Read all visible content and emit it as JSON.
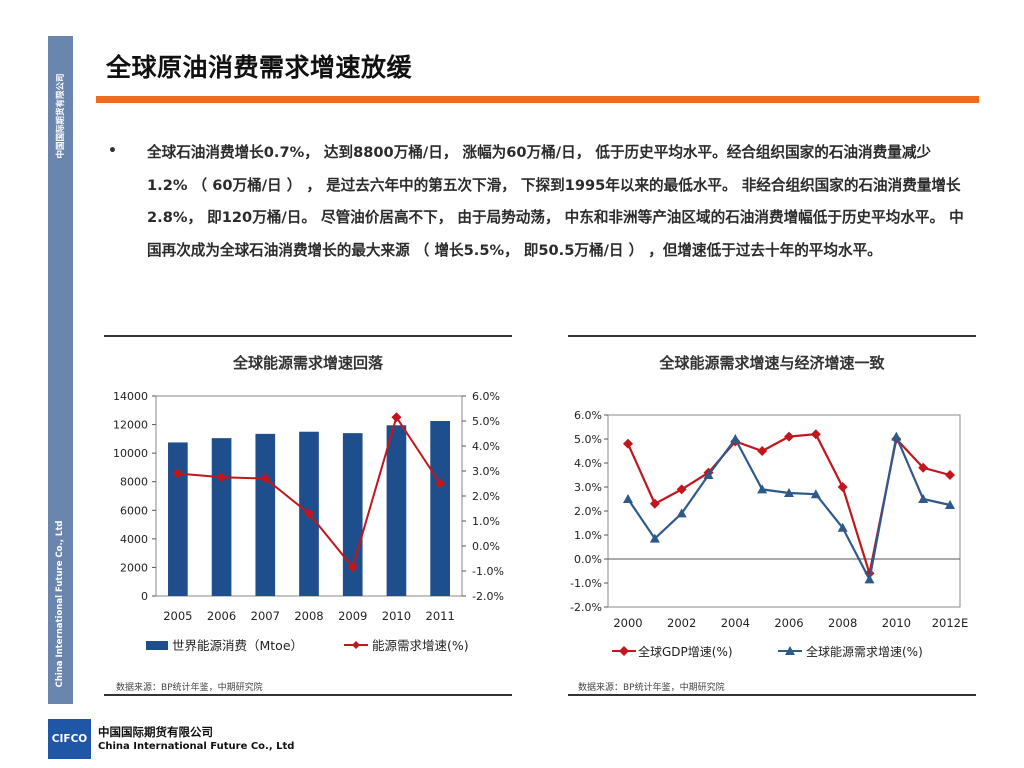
{
  "slide": {
    "title": "全球原油消费需求增速放缓",
    "bullet_symbol": "•",
    "body": "全球石油消费增长0.7%， 达到8800万桶/日， 涨幅为60万桶/日， 低于历史平均水平。经合组织国家的石油消费量减少1.2% （ 60万桶/日 ） ， 是过去六年中的第五次下滑， 下探到1995年以来的最低水平。 非经合组织国家的石油消费量增长2.8%， 即120万桶/日。 尽管油价居高不下， 由于局势动荡， 中东和非洲等产油区域的石油消费增幅低于历史平均水平。 中国再次成为全球石油消费增长的最大来源 （ 增长5.5%， 即50.5万桶/日 ） ，但增速低于过去十年的平均水平。"
  },
  "sidebar": {
    "text_cn": "中国国际期货有限公司",
    "text_en": "China International Future Co., Ltd",
    "color": "#6a86ae"
  },
  "footer": {
    "logo": "CIFCO",
    "company_cn": "中国国际期货有限公司",
    "company_en": "China International Future Co., Ltd",
    "logo_color": "#1f56a6"
  },
  "accent_color": "#f26a1c",
  "chart_data": [
    {
      "type": "bar+line",
      "title": "全球能源需求增速回落",
      "categories": [
        "2005",
        "2006",
        "2007",
        "2008",
        "2009",
        "2010",
        "2011"
      ],
      "series": [
        {
          "name": "世界能源消费（Mtoe）",
          "kind": "bar",
          "axis": "left",
          "color": "#1f4e8c",
          "values": [
            10750,
            11050,
            11350,
            11500,
            11400,
            11950,
            12250
          ]
        },
        {
          "name": "能源需求增速(%)",
          "kind": "line",
          "axis": "right",
          "color": "#c0171d",
          "values": [
            2.9,
            2.75,
            2.7,
            1.3,
            -0.85,
            5.15,
            2.5
          ]
        }
      ],
      "y_left": {
        "min": 0,
        "max": 14000,
        "ticks": [
          "0",
          "2000",
          "4000",
          "6000",
          "8000",
          "10000",
          "12000",
          "14000"
        ]
      },
      "y_right": {
        "min": -2,
        "max": 6,
        "ticks": [
          "-2.0%",
          "-1.0%",
          "0.0%",
          "1.0%",
          "2.0%",
          "3.0%",
          "4.0%",
          "5.0%",
          "6.0%"
        ]
      },
      "source": "数据来源：BP统计年鉴，中期研究院"
    },
    {
      "type": "line",
      "title": "全球能源需求增速与经济增速一致",
      "x": [
        "2000",
        "2001",
        "2002",
        "2003",
        "2004",
        "2005",
        "2006",
        "2007",
        "2008",
        "2009",
        "2010",
        "2011",
        "2012E"
      ],
      "x_tick_labels": [
        "2000",
        "2002",
        "2004",
        "2006",
        "2008",
        "2010",
        "2012E"
      ],
      "series": [
        {
          "name": "全球GDP增速(%)",
          "color": "#c0171d",
          "marker": "diamond",
          "values": [
            4.8,
            2.3,
            2.9,
            3.6,
            4.9,
            4.5,
            5.1,
            5.2,
            3.0,
            -0.6,
            5.0,
            3.8,
            3.5
          ]
        },
        {
          "name": "全球能源需求增速(%)",
          "color": "#2e5a8a",
          "marker": "triangle",
          "values": [
            2.5,
            0.85,
            1.9,
            3.5,
            5.0,
            2.9,
            2.75,
            2.7,
            1.3,
            -0.85,
            5.1,
            2.5,
            2.25
          ]
        }
      ],
      "y": {
        "min": -2,
        "max": 6,
        "ticks": [
          "-2.0%",
          "-1.0%",
          "0.0%",
          "1.0%",
          "2.0%",
          "3.0%",
          "4.0%",
          "5.0%",
          "6.0%"
        ]
      },
      "grid": false,
      "source": "数据来源：BP统计年鉴，中期研究院"
    }
  ]
}
